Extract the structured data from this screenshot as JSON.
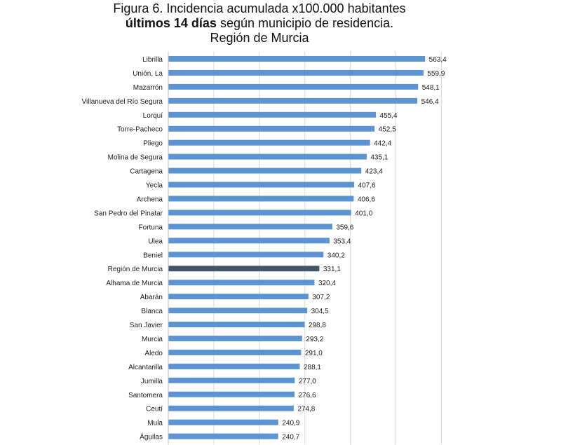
{
  "title": {
    "line1": "Figura 6. Incidencia acumulada x100.000 habitantes",
    "line2_bold": "últimos 14 días",
    "line2_rest": " según municipio de residencia.",
    "line3": "Región de Murcia"
  },
  "colors": {
    "bar": "#5b93d3",
    "highlight": "#44546a",
    "grid": "#d9d9d9",
    "text": "#1a1a1a"
  },
  "chart_data": {
    "type": "bar",
    "orientation": "horizontal",
    "categories": [
      "Librilla",
      "Unión, La",
      "Mazarrón",
      "Villanueva del Río Segura",
      "Lorquí",
      "Torre-Pacheco",
      "Pliego",
      "Molina de Segura",
      "Cartagena",
      "Yecla",
      "Archena",
      "San Pedro del Pinatar",
      "Fortuna",
      "Ulea",
      "Beniel",
      "Región de Murcia",
      "Alhama de Murcia",
      "Abarán",
      "Blanca",
      "San Javier",
      "Murcia",
      "Aledo",
      "Alcantarilla",
      "Jumilla",
      "Santomera",
      "Ceutí",
      "Mula",
      "Águilas"
    ],
    "values": [
      563.4,
      559.9,
      548.1,
      546.4,
      455.4,
      452.5,
      442.4,
      435.1,
      423.4,
      407.6,
      406.6,
      401.0,
      359.6,
      353.4,
      340.2,
      331.1,
      320.4,
      307.2,
      304.5,
      298.8,
      293.2,
      291.0,
      288.1,
      277.0,
      276.6,
      274.8,
      240.9,
      240.7
    ],
    "value_labels": [
      "563,4",
      "559,9",
      "548,1",
      "546,4",
      "455,4",
      "452,5",
      "442,4",
      "435,1",
      "423,4",
      "407,6",
      "406,6",
      "401,0",
      "359,6",
      "353,4",
      "340,2",
      "331,1",
      "320,4",
      "307,2",
      "304,5",
      "298,8",
      "293,2",
      "291,0",
      "288,1",
      "277,0",
      "276,6",
      "274,8",
      "240,9",
      "240,7"
    ],
    "highlight_category": "Región de Murcia",
    "xlim": [
      0,
      650
    ],
    "grid": true,
    "title": "Figura 6. Incidencia acumulada x100.000 habitantes últimos 14 días según municipio de residencia. Región de Murcia",
    "xlabel": "",
    "ylabel": ""
  }
}
